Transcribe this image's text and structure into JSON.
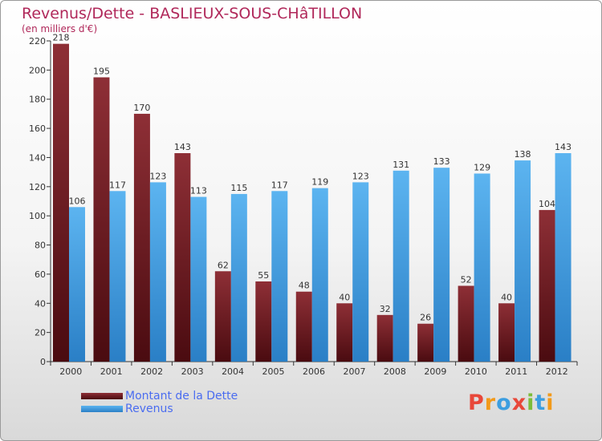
{
  "chart_data": {
    "type": "bar",
    "title": "Revenus/Dette - BASLIEUX-SOUS-CHâTILLON",
    "subtitle": "(en milliers d'€)",
    "categories": [
      "2000",
      "2001",
      "2002",
      "2003",
      "2004",
      "2005",
      "2006",
      "2007",
      "2008",
      "2009",
      "2010",
      "2011",
      "2012"
    ],
    "series": [
      {
        "name": "Montant de la Dette",
        "color": "#7a1e26",
        "values": [
          218,
          195,
          170,
          143,
          62,
          55,
          48,
          40,
          32,
          26,
          52,
          40,
          104
        ]
      },
      {
        "name": "Revenus",
        "color": "#3f9ee2",
        "values": [
          106,
          117,
          123,
          113,
          115,
          117,
          119,
          123,
          131,
          133,
          129,
          138,
          143
        ]
      }
    ],
    "ylim": [
      0,
      220
    ],
    "yticks": [
      0,
      20,
      40,
      60,
      80,
      100,
      120,
      140,
      160,
      180,
      200,
      220
    ],
    "grid": false,
    "legend_position": "bottom-left"
  },
  "logo": {
    "text": "Proxiti",
    "colors": [
      "#e8483a",
      "#f29a1a",
      "#3c9ee0",
      "#e8483a",
      "#7bbd3a",
      "#3c9ee0",
      "#f29a1a"
    ]
  }
}
